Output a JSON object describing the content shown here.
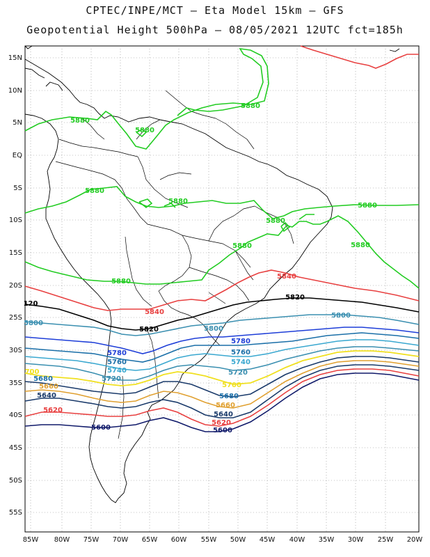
{
  "title_line1": "CPTEC/INPE/MCT –  Eta Model 15km – GFS",
  "title_line2": "Geopotential Height 500hPa – 08/05/2021 12UTC fct=185h",
  "axes": {
    "lat_labels": [
      "15N",
      "10N",
      "5N",
      "EQ",
      "5S",
      "10S",
      "15S",
      "20S",
      "25S",
      "30S",
      "35S",
      "40S",
      "45S",
      "50S",
      "55S"
    ],
    "lon_labels": [
      "85W",
      "80W",
      "75W",
      "70W",
      "65W",
      "60W",
      "55W",
      "50W",
      "45W",
      "40W",
      "35W",
      "30W",
      "25W",
      "20W"
    ]
  },
  "colors": {
    "c5880": "#22cc22",
    "c5840": "#e84040",
    "c5820": "#000000",
    "c5800": "#3a8fb0",
    "c5780": "#1e3ed8",
    "c5760": "#1a6fa8",
    "c5740": "#3aa8d0",
    "c5720": "#3a8fb0",
    "c5700": "#f0e020",
    "c5680": "#e0a030",
    "c5640": "#1a3a6a",
    "c5620": "#e84040",
    "c5600": "#101a6a"
  },
  "contour_labels": [
    {
      "text": "5880",
      "color": "c5880"
    },
    {
      "text": "5880",
      "color": "c5880"
    },
    {
      "text": "5880",
      "color": "c5880"
    },
    {
      "text": "5880",
      "color": "c5880"
    },
    {
      "text": "5880",
      "color": "c5880"
    },
    {
      "text": "5880",
      "color": "c5880"
    },
    {
      "text": "5880",
      "color": "c5880"
    },
    {
      "text": "5880",
      "color": "c5880"
    },
    {
      "text": "5880",
      "color": "c5880"
    },
    {
      "text": "5880",
      "color": "c5880"
    },
    {
      "text": "5840",
      "color": "c5840"
    },
    {
      "text": "5840",
      "color": "c5840"
    },
    {
      "text": "5820",
      "color": "c5820"
    },
    {
      "text": "5820",
      "color": "c5820"
    },
    {
      "text": "120",
      "color": "c5820"
    },
    {
      "text": "5800",
      "color": "c5800"
    },
    {
      "text": "5800",
      "color": "c5800"
    },
    {
      "text": "5800",
      "color": "c5800"
    },
    {
      "text": "5780",
      "color": "c5780"
    },
    {
      "text": "5780",
      "color": "c5780"
    },
    {
      "text": "5760",
      "color": "c5760"
    },
    {
      "text": "5760",
      "color": "c5760"
    },
    {
      "text": "5740",
      "color": "c5740"
    },
    {
      "text": "5740",
      "color": "c5740"
    },
    {
      "text": "5720",
      "color": "c5720"
    },
    {
      "text": "5720",
      "color": "c5720"
    },
    {
      "text": "700",
      "color": "c5700"
    },
    {
      "text": "5700",
      "color": "c5700"
    },
    {
      "text": "5680",
      "color": "c5760"
    },
    {
      "text": "5680",
      "color": "c5760"
    },
    {
      "text": "5660",
      "color": "c5680"
    },
    {
      "text": "5660",
      "color": "c5680"
    },
    {
      "text": "5640",
      "color": "c5640"
    },
    {
      "text": "5640",
      "color": "c5640"
    },
    {
      "text": "5620",
      "color": "c5620"
    },
    {
      "text": "5620",
      "color": "c5620"
    },
    {
      "text": "5600",
      "color": "c5600"
    },
    {
      "text": "5600",
      "color": "c5600"
    }
  ]
}
